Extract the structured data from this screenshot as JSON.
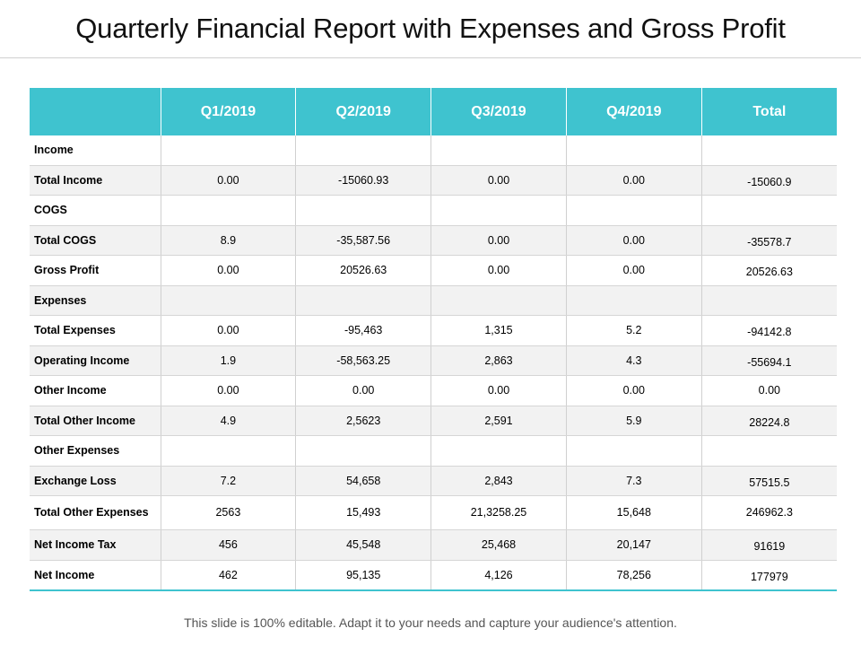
{
  "title": "Quarterly Financial Report with Expenses and Gross Profit",
  "table": {
    "headers": [
      "",
      "Q1/2019",
      "Q2/2019",
      "Q3/2019",
      "Q4/2019",
      "Total"
    ],
    "rows": [
      {
        "label": "Income",
        "q1": "",
        "q2": "",
        "q3": "",
        "q4": "",
        "total": ""
      },
      {
        "label": "Total Income",
        "q1": "0.00",
        "q2": "-15060.93",
        "q3": "0.00",
        "q4": "0.00",
        "total": "-15060.9"
      },
      {
        "label": "COGS",
        "q1": "",
        "q2": "",
        "q3": "",
        "q4": "",
        "total": ""
      },
      {
        "label": "Total COGS",
        "q1": "8.9",
        "q2": "-35,587.56",
        "q3": "0.00",
        "q4": "0.00",
        "total": "-35578.7"
      },
      {
        "label": "Gross Profit",
        "q1": "0.00",
        "q2": "20526.63",
        "q3": "0.00",
        "q4": "0.00",
        "total": "20526.63"
      },
      {
        "label": "Expenses",
        "q1": "",
        "q2": "",
        "q3": "",
        "q4": "",
        "total": ""
      },
      {
        "label": "Total Expenses",
        "q1": "0.00",
        "q2": "-95,463",
        "q3": "1,315",
        "q4": "5.2",
        "total": "-94142.8"
      },
      {
        "label": "Operating Income",
        "q1": "1.9",
        "q2": "-58,563.25",
        "q3": "2,863",
        "q4": "4.3",
        "total": "-55694.1"
      },
      {
        "label": "Other Income",
        "q1": "0.00",
        "q2": "0.00",
        "q3": "0.00",
        "q4": "0.00",
        "total": "0.00"
      },
      {
        "label": "Total Other Income",
        "q1": "4.9",
        "q2": "2,5623",
        "q3": "2,591",
        "q4": "5.9",
        "total": "28224.8"
      },
      {
        "label": "Other Expenses",
        "q1": "",
        "q2": "",
        "q3": "",
        "q4": "",
        "total": ""
      },
      {
        "label": "Exchange Loss",
        "q1": "7.2",
        "q2": "54,658",
        "q3": "2,843",
        "q4": "7.3",
        "total": "57515.5"
      },
      {
        "label": "Total Other Expenses",
        "q1": "2563",
        "q2": "15,493",
        "q3": "21,3258.25",
        "q4": "15,648",
        "total": "246962.3"
      },
      {
        "label": "Net Income Tax",
        "q1": "456",
        "q2": "45,548",
        "q3": "25,468",
        "q4": "20,147",
        "total": "91619"
      },
      {
        "label": "Net Income",
        "q1": "462",
        "q2": "95,135",
        "q3": "4,126",
        "q4": "78,256",
        "total": "177979"
      }
    ]
  },
  "footer": "This slide is 100% editable. Adapt it to your needs and capture your audience's attention."
}
